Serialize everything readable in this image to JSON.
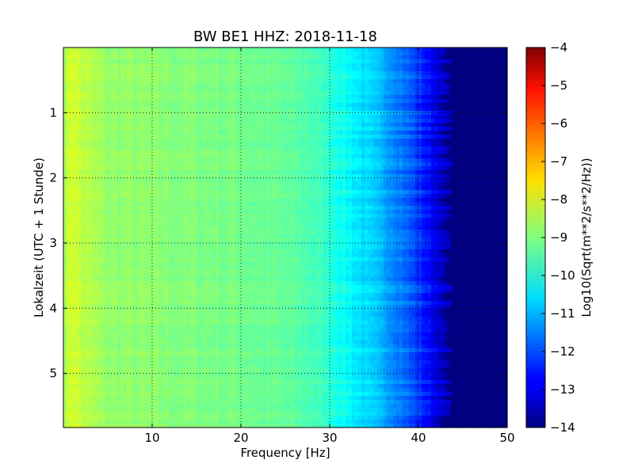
{
  "chart_data": {
    "type": "heatmap",
    "title": "BW BE1 HHZ: 2018-11-18",
    "xlabel": "Frequency [Hz]",
    "ylabel": "Lokalzeit (UTC + 1 Stunde)",
    "xlim": [
      0,
      50
    ],
    "ylim": [
      0,
      5.83
    ],
    "y_inverted": true,
    "xticks": [
      10,
      20,
      30,
      40,
      50
    ],
    "yticks": [
      1,
      2,
      3,
      4,
      5
    ],
    "grid": true,
    "colormap": "jet",
    "colorbar": {
      "label": "Log10(Sqrt(m**2/s**2/Hz))",
      "range": [
        -14,
        -4
      ],
      "ticks": [
        -4,
        -5,
        -6,
        -7,
        -8,
        -9,
        -10,
        -11,
        -12,
        -13,
        -14
      ]
    },
    "spectrum_profile": {
      "frequency_hz": [
        0,
        1,
        2,
        5,
        10,
        15,
        20,
        25,
        28,
        30,
        32,
        34,
        36,
        38,
        40,
        41,
        42,
        43,
        43.5,
        50
      ],
      "log10_amplitude": [
        -8.6,
        -8.1,
        -8.4,
        -8.8,
        -8.9,
        -9.0,
        -9.1,
        -9.3,
        -9.5,
        -9.8,
        -10.2,
        -10.6,
        -11.0,
        -11.5,
        -12.2,
        -12.6,
        -13.0,
        -13.4,
        -14.0,
        -14.0
      ]
    }
  }
}
